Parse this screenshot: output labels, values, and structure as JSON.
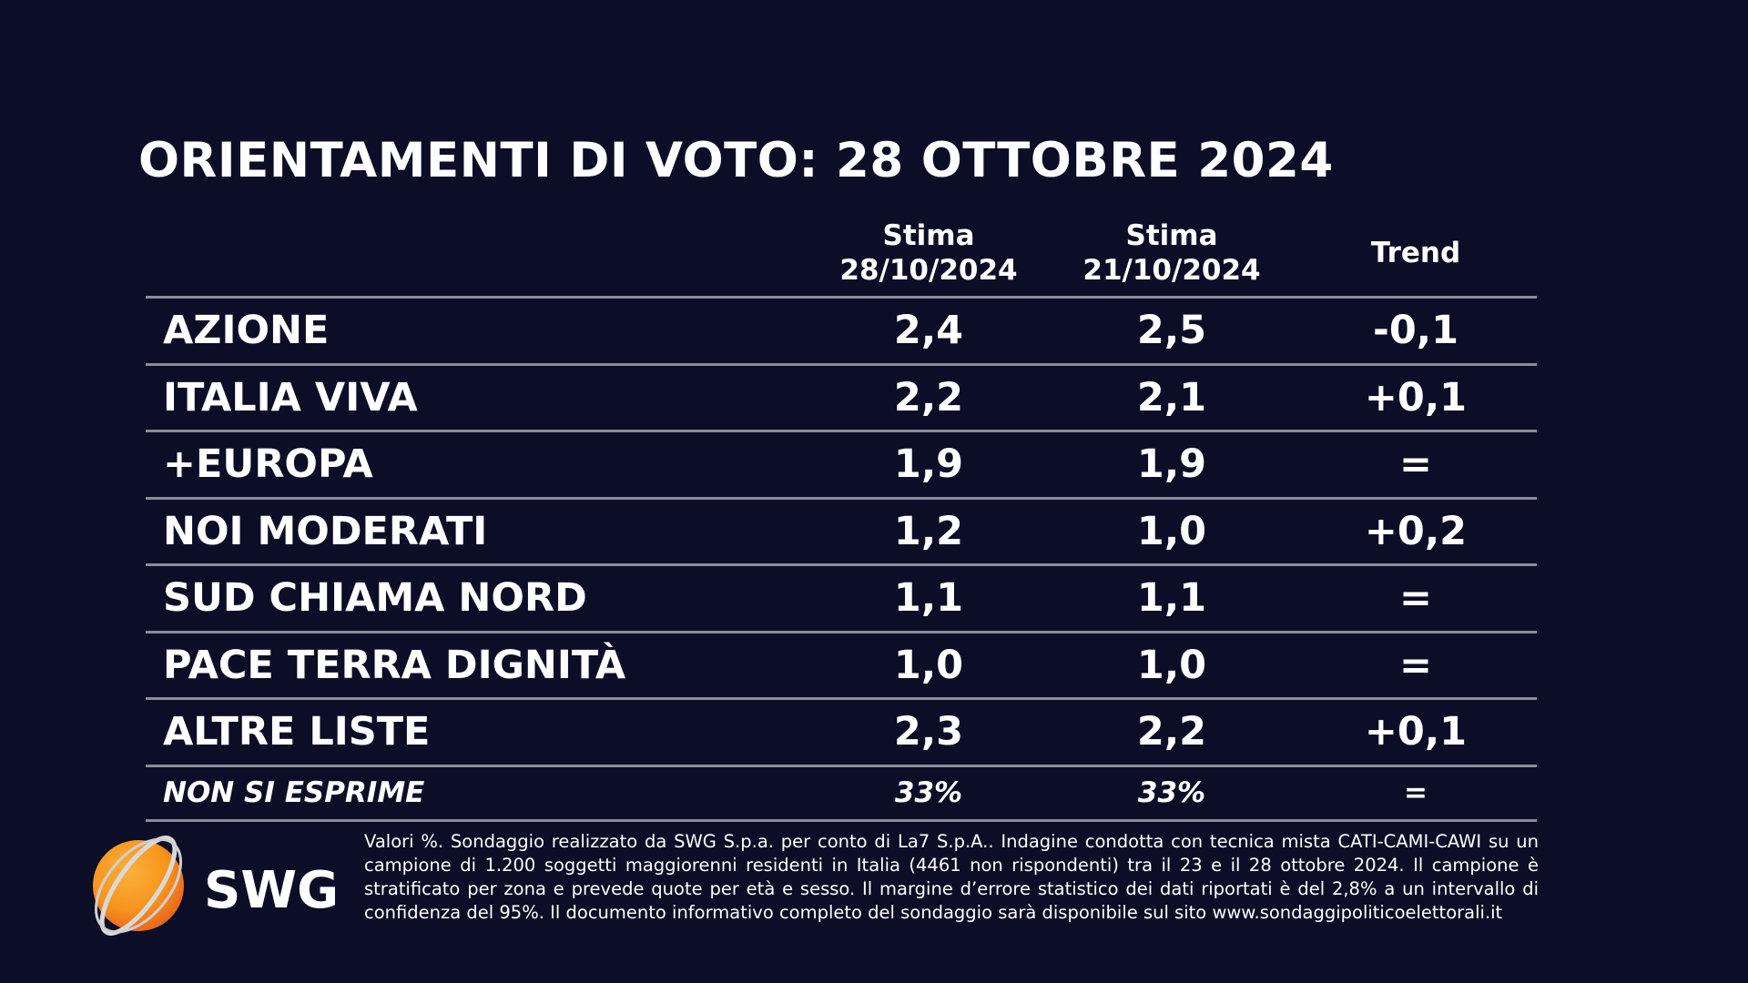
{
  "title": "ORIENTAMENTI DI VOTO: 28 OTTOBRE 2024",
  "columns": [
    {
      "line1": "Stima",
      "line2": "28/10/2024"
    },
    {
      "line1": "Stima",
      "line2": "21/10/2024"
    },
    {
      "line1": "",
      "line2": "Trend"
    }
  ],
  "rows": [
    {
      "party": "AZIONE",
      "current": "2,4",
      "previous": "2,5",
      "trend": "-0,1"
    },
    {
      "party": "ITALIA VIVA",
      "current": "2,2",
      "previous": "2,1",
      "trend": "+0,1"
    },
    {
      "party": "+EUROPA",
      "current": "1,9",
      "previous": "1,9",
      "trend": "="
    },
    {
      "party": "NOI MODERATI",
      "current": "1,2",
      "previous": "1,0",
      "trend": "+0,2"
    },
    {
      "party": "SUD CHIAMA NORD",
      "current": "1,1",
      "previous": "1,1",
      "trend": "="
    },
    {
      "party": "PACE TERRA DIGNITÀ",
      "current": "1,0",
      "previous": "1,0",
      "trend": "="
    },
    {
      "party": "ALTRE LISTE",
      "current": "2,3",
      "previous": "2,2",
      "trend": "+0,1"
    },
    {
      "party": "NON SI ESPRIME",
      "current": "33%",
      "previous": "33%",
      "trend": "="
    }
  ],
  "logo": {
    "text": "SWG",
    "colors": {
      "orange": "#f7941d",
      "ring": "#d9d9d9"
    }
  },
  "footer": "Valori %. Sondaggio realizzato da SWG S.p.a. per conto di La7 S.p.A.. Indagine condotta con tecnica mista CATI-CAMI-CAWI su un campione di 1.200 soggetti maggiorenni residenti in Italia (4461 non rispondenti) tra il 23 e il 28 ottobre 2024. Il campione è stratificato per zona e prevede quote per età e sesso. Il margine d’errore statistico dei dati riportati è del 2,8% a un intervallo di confidenza del 95%. Il documento informativo completo del sondaggio sarà disponibile sul sito www.sondaggipoliticoelettorali.it"
}
